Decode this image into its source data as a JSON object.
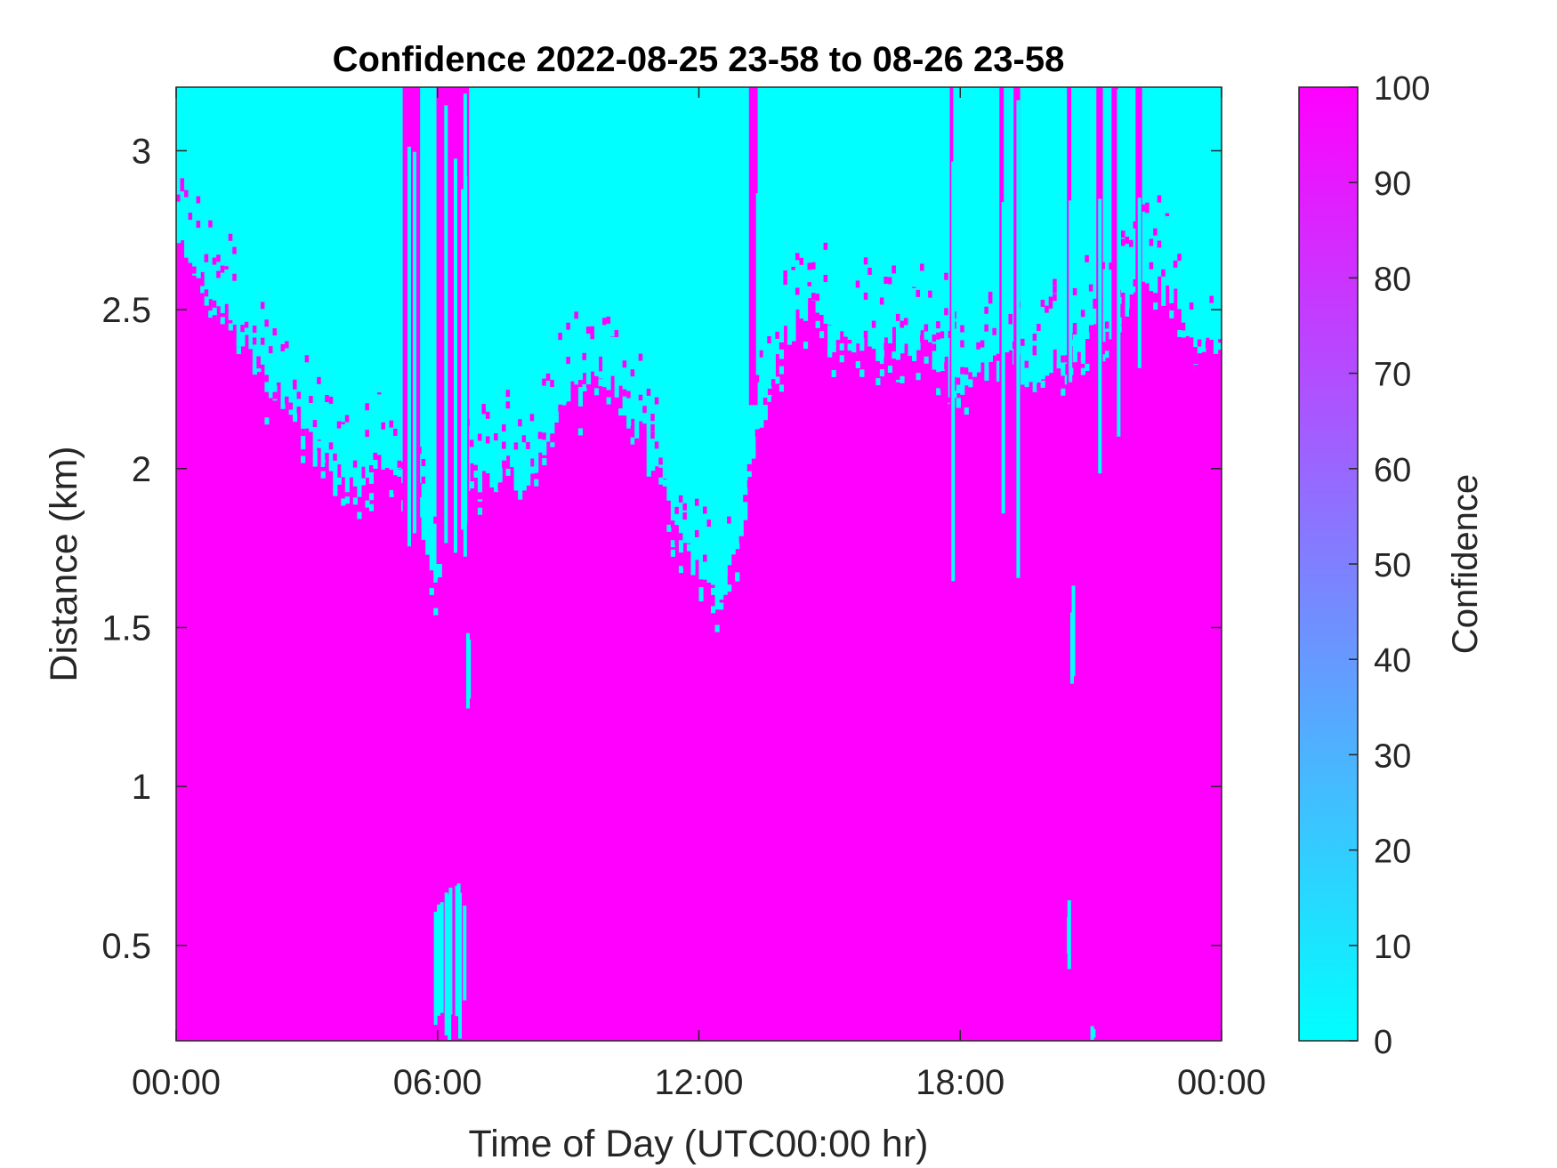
{
  "chart_data": {
    "type": "heatmap",
    "title": "Confidence 2022-08-25 23-58 to 08-26 23-58",
    "xlabel": "Time of Day (UTC00:00 hr)",
    "ylabel": "Distance (km)",
    "xlim_hours": [
      0,
      24
    ],
    "ylim": [
      0.2,
      3.2
    ],
    "xticks": [
      {
        "value": 0,
        "label": "00:00"
      },
      {
        "value": 6,
        "label": "06:00"
      },
      {
        "value": 12,
        "label": "12:00"
      },
      {
        "value": 18,
        "label": "18:00"
      },
      {
        "value": 24,
        "label": "00:00"
      }
    ],
    "yticks": [
      {
        "value": 0.5,
        "label": "0.5"
      },
      {
        "value": 1,
        "label": "1"
      },
      {
        "value": 1.5,
        "label": "1.5"
      },
      {
        "value": 2,
        "label": "2"
      },
      {
        "value": 2.5,
        "label": "2.5"
      },
      {
        "value": 3,
        "label": "3"
      }
    ],
    "colorbar": {
      "label": "Confidence",
      "range": [
        0,
        100
      ],
      "ticks": [
        0,
        10,
        20,
        30,
        40,
        50,
        60,
        70,
        80,
        90,
        100
      ],
      "color_low": "#00ffff",
      "color_high": "#ff00ff"
    },
    "grid": false,
    "confidence_values_present": [
      0,
      100
    ],
    "boundary_km": {
      "time_hr": [
        0,
        0.5,
        1,
        1.5,
        2,
        2.5,
        3,
        3.5,
        4,
        4.5,
        5,
        5.5,
        6,
        6.5,
        7,
        7.5,
        8,
        8.5,
        9,
        9.5,
        10,
        10.5,
        11,
        11.5,
        12,
        12.5,
        13,
        13.5,
        14,
        14.5,
        15,
        15.5,
        16,
        16.5,
        17,
        17.5,
        18,
        18.5,
        19,
        19.5,
        20,
        20.5,
        21,
        21.5,
        22,
        22.5,
        23,
        23.5,
        24
      ],
      "distance_km": [
        2.7,
        2.6,
        2.5,
        2.4,
        2.3,
        2.2,
        2.1,
        2.0,
        1.95,
        2.0,
        2.05,
        1.85,
        1.65,
        2.0,
        1.95,
        2.0,
        1.95,
        2.05,
        2.2,
        2.3,
        2.3,
        2.15,
        2.0,
        1.8,
        1.65,
        1.6,
        1.8,
        2.2,
        2.4,
        2.5,
        2.4,
        2.4,
        2.35,
        2.4,
        2.4,
        2.35,
        2.2,
        2.3,
        2.35,
        2.3,
        2.3,
        2.35,
        2.4,
        2.45,
        2.55,
        2.6,
        2.5,
        2.4,
        2.35
      ]
    },
    "spikes": [
      {
        "time_hr": 5.4,
        "width_hr": 0.4,
        "from_km": 1.65,
        "to_km": 3.2
      },
      {
        "time_hr": 6.35,
        "width_hr": 0.75,
        "from_km": 1.7,
        "to_km": 3.2
      },
      {
        "time_hr": 13.25,
        "width_hr": 0.2,
        "from_km": 2.2,
        "to_km": 3.2
      },
      {
        "time_hr": 17.8,
        "width_hr": 0.08,
        "from_km": 1.6,
        "to_km": 3.2
      },
      {
        "time_hr": 18.95,
        "width_hr": 0.1,
        "from_km": 1.7,
        "to_km": 3.2
      },
      {
        "time_hr": 19.3,
        "width_hr": 0.15,
        "from_km": 1.6,
        "to_km": 3.2
      },
      {
        "time_hr": 20.5,
        "width_hr": 0.1,
        "from_km": 2.1,
        "to_km": 3.2
      },
      {
        "time_hr": 21.2,
        "width_hr": 0.15,
        "from_km": 1.8,
        "to_km": 3.2
      },
      {
        "time_hr": 21.55,
        "width_hr": 0.15,
        "from_km": 2.0,
        "to_km": 3.2
      },
      {
        "time_hr": 22.1,
        "width_hr": 0.15,
        "from_km": 2.3,
        "to_km": 3.2
      }
    ],
    "patches": [
      {
        "time_hr": 6.25,
        "width_hr": 0.7,
        "from_km": 0.2,
        "to_km": 0.75
      },
      {
        "time_hr": 6.7,
        "width_hr": 0.1,
        "from_km": 1.2,
        "to_km": 1.55
      },
      {
        "time_hr": 20.5,
        "width_hr": 0.15,
        "from_km": 0.4,
        "to_km": 0.65
      },
      {
        "time_hr": 20.55,
        "width_hr": 0.1,
        "from_km": 1.3,
        "to_km": 1.65
      },
      {
        "time_hr": 21.0,
        "width_hr": 0.05,
        "from_km": 0.2,
        "to_km": 0.25
      }
    ]
  }
}
